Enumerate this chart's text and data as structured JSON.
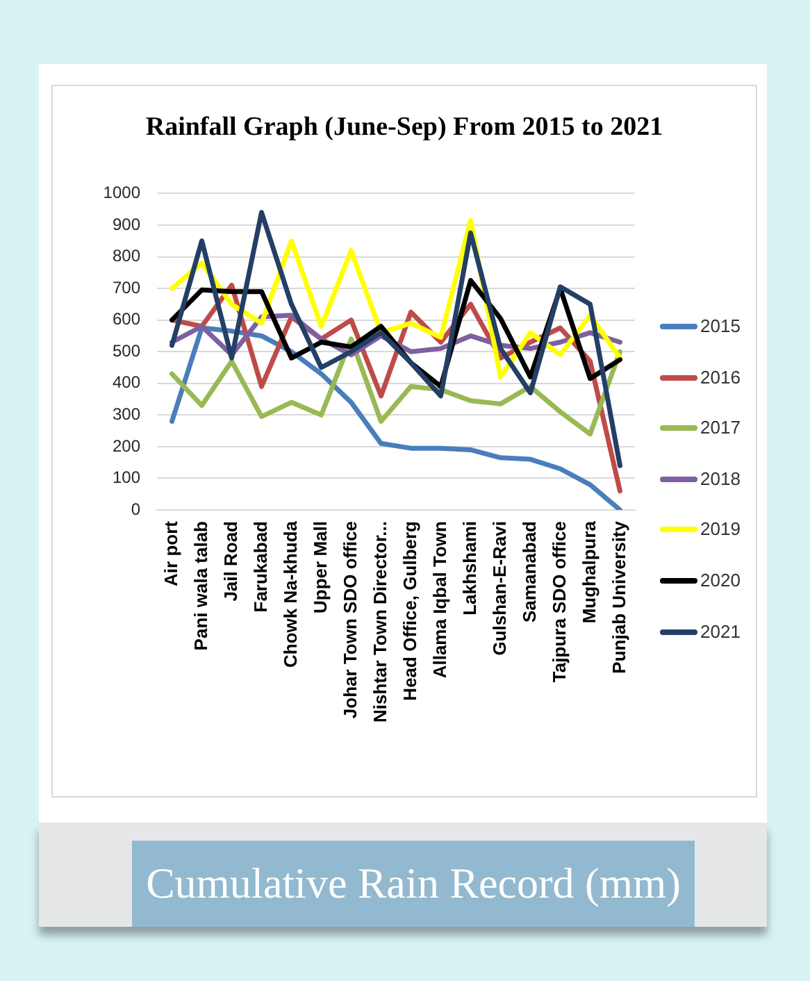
{
  "chart_data": {
    "type": "line",
    "title": "Rainfall Graph (June-Sep) From 2015 to 2021",
    "annotations": [
      "Cumulative Rain Record (mm)"
    ],
    "categories": [
      "Air port",
      "Pani wala talab",
      "Jail Road",
      "Farukabad",
      "Chowk Na-khuda",
      "Upper Mall",
      "Johar Town SDO office",
      "Nishtar Town Director...",
      "Head Office, Gulberg",
      "Allama Iqbal Town",
      "Lakhshami",
      "Gulshan-E-Ravi",
      "Samanabad",
      "Tajpura SDO office",
      "Mughalpura",
      "Punjab University"
    ],
    "series": [
      {
        "name": "2015",
        "color": "#4a7ebb",
        "values": [
          280,
          575,
          565,
          550,
          500,
          430,
          340,
          210,
          195,
          195,
          190,
          165,
          160,
          130,
          80,
          0
        ]
      },
      {
        "name": "2016",
        "color": "#be4b48",
        "values": [
          600,
          580,
          710,
          390,
          610,
          540,
          600,
          360,
          625,
          530,
          650,
          480,
          530,
          575,
          470,
          60
        ]
      },
      {
        "name": "2017",
        "color": "#98b954",
        "values": [
          430,
          330,
          470,
          295,
          340,
          300,
          540,
          280,
          390,
          380,
          345,
          335,
          390,
          310,
          240,
          500
        ]
      },
      {
        "name": "2018",
        "color": "#7d60a0",
        "values": [
          530,
          580,
          490,
          610,
          615,
          540,
          490,
          550,
          500,
          510,
          550,
          520,
          510,
          530,
          560,
          530
        ]
      },
      {
        "name": "2019",
        "color": "#ffff00",
        "values": [
          700,
          780,
          650,
          590,
          850,
          580,
          820,
          560,
          590,
          545,
          915,
          420,
          560,
          490,
          615,
          480
        ]
      },
      {
        "name": "2020",
        "color": "#000000",
        "values": [
          600,
          695,
          690,
          690,
          480,
          530,
          515,
          580,
          465,
          390,
          725,
          605,
          420,
          700,
          415,
          475
        ]
      },
      {
        "name": "2021",
        "color": "#243f66",
        "values": [
          520,
          850,
          480,
          940,
          650,
          450,
          500,
          560,
          465,
          360,
          875,
          510,
          370,
          705,
          650,
          140
        ]
      }
    ],
    "ylim": [
      0,
      1000
    ],
    "yticks": [
      0,
      100,
      200,
      300,
      400,
      500,
      600,
      700,
      800,
      900,
      1000
    ],
    "grid": "y",
    "legend": "right"
  }
}
